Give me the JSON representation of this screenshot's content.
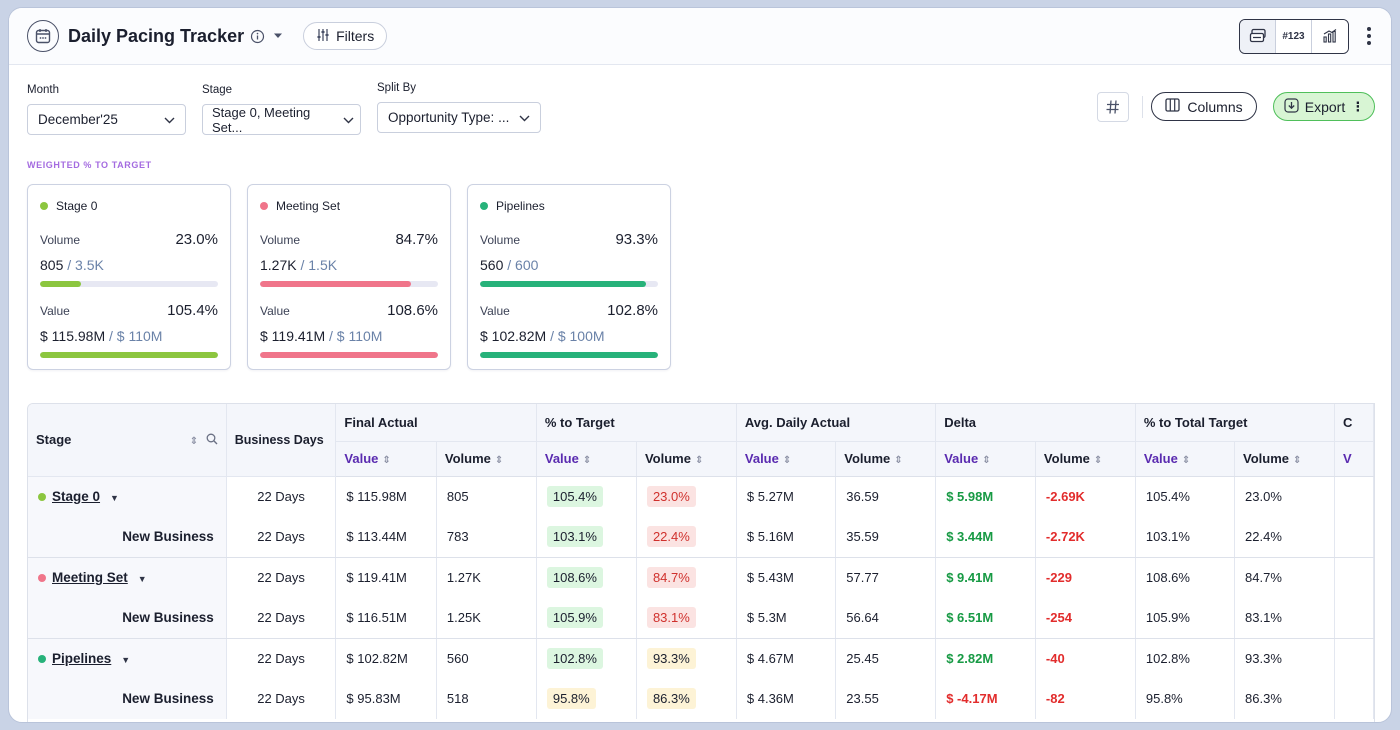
{
  "header": {
    "title": "Daily Pacing Tracker",
    "filters_label": "Filters",
    "view_number_label": "#123"
  },
  "controls": {
    "month": {
      "label": "Month",
      "value": "December'25"
    },
    "stage": {
      "label": "Stage",
      "value": "Stage 0, Meeting Set..."
    },
    "split": {
      "label": "Split By",
      "value": "Opportunity Type: ..."
    },
    "columns_label": "Columns",
    "export_label": "Export"
  },
  "section_label": "WEIGHTED % TO TARGET",
  "colors": {
    "stage0": "#8cc63f",
    "meeting": "#f0758a",
    "pipelines": "#27b27a",
    "accent_purple": "#5a2bb0"
  },
  "cards": [
    {
      "name": "Stage 0",
      "volume_label": "Volume",
      "volume_pct": "23.0%",
      "volume_val": "805",
      "volume_target": "/ 3.5K",
      "volume_fill": 0.23,
      "value_label": "Value",
      "value_pct": "105.4%",
      "value_val": "$ 115.98M",
      "value_target": "/ $ 110M",
      "value_fill": 1.0
    },
    {
      "name": "Meeting Set",
      "volume_label": "Volume",
      "volume_pct": "84.7%",
      "volume_val": "1.27K",
      "volume_target": "/ 1.5K",
      "volume_fill": 0.847,
      "value_label": "Value",
      "value_pct": "108.6%",
      "value_val": "$ 119.41M",
      "value_target": "/ $ 110M",
      "value_fill": 1.0
    },
    {
      "name": "Pipelines",
      "volume_label": "Volume",
      "volume_pct": "93.3%",
      "volume_val": "560",
      "volume_target": "/ 600",
      "volume_fill": 0.933,
      "value_label": "Value",
      "value_pct": "102.8%",
      "value_val": "$ 102.82M",
      "value_target": "/ $ 100M",
      "value_fill": 1.0
    }
  ],
  "table": {
    "head": {
      "stage": "Stage",
      "business_days": "Business Days",
      "final_actual": "Final Actual",
      "pct_target": "% to Target",
      "avg_daily": "Avg. Daily Actual",
      "delta": "Delta",
      "pct_total": "% to Total Target",
      "cut": "C",
      "value": "Value",
      "volume": "Volume"
    },
    "rows": [
      [
        "Stage 0",
        "22 Days",
        "$ 115.98M",
        "805",
        "105.4%",
        "23.0%",
        "$ 5.27M",
        "36.59",
        "$ 5.98M",
        "-2.69K",
        "105.4%",
        "23.0%"
      ],
      [
        "New Business",
        "22 Days",
        "$ 113.44M",
        "783",
        "103.1%",
        "22.4%",
        "$ 5.16M",
        "35.59",
        "$ 3.44M",
        "-2.72K",
        "103.1%",
        "22.4%"
      ],
      [
        "Meeting Set",
        "22 Days",
        "$ 119.41M",
        "1.27K",
        "108.6%",
        "84.7%",
        "$ 5.43M",
        "57.77",
        "$ 9.41M",
        "-229",
        "108.6%",
        "84.7%"
      ],
      [
        "New Business",
        "22 Days",
        "$ 116.51M",
        "1.25K",
        "105.9%",
        "83.1%",
        "$ 5.3M",
        "56.64",
        "$ 6.51M",
        "-254",
        "105.9%",
        "83.1%"
      ],
      [
        "Pipelines",
        "22 Days",
        "$ 102.82M",
        "560",
        "102.8%",
        "93.3%",
        "$ 4.67M",
        "25.45",
        "$ 2.82M",
        "-40",
        "102.8%",
        "93.3%"
      ],
      [
        "New Business",
        "22 Days",
        "$ 95.83M",
        "518",
        "95.8%",
        "86.3%",
        "$ 4.36M",
        "23.55",
        "$ -4.17M",
        "-82",
        "95.8%",
        "86.3%"
      ]
    ]
  }
}
